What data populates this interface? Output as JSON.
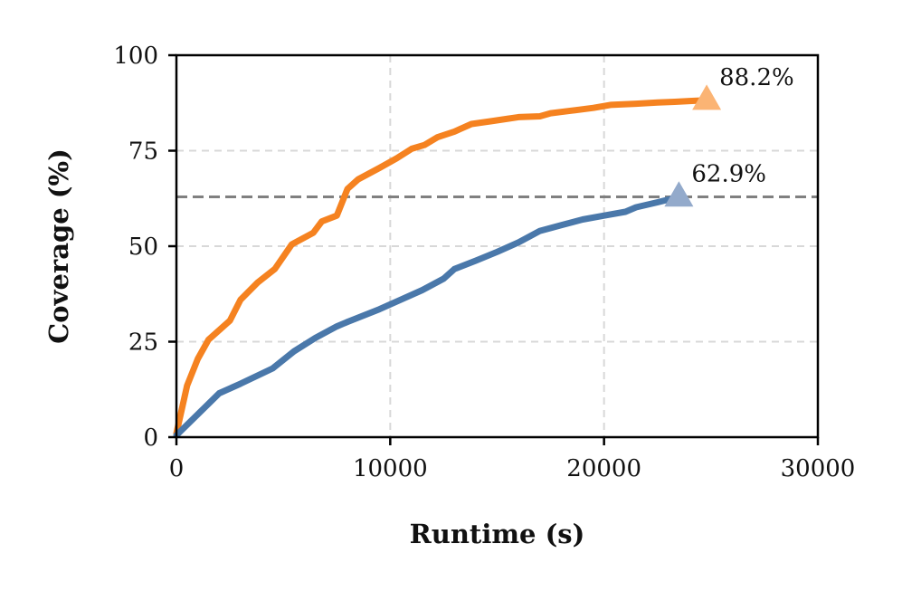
{
  "chart_data": {
    "type": "line",
    "xlabel": "Runtime (s)",
    "ylabel": "Coverage (%)",
    "xlim": [
      0,
      30000
    ],
    "ylim": [
      0,
      100
    ],
    "xticks": [
      0,
      10000,
      20000,
      30000
    ],
    "yticks": [
      0,
      25,
      50,
      75,
      100
    ],
    "grid": true,
    "reference_line_y": 62.9,
    "series": [
      {
        "color": "#f58220",
        "marker_color": "#fbb474",
        "end_label": "88.2%",
        "x": [
          0,
          200,
          500,
          1000,
          1500,
          2500,
          3000,
          3800,
          4600,
          5400,
          6400,
          6800,
          7500,
          8000,
          8500,
          9500,
          10300,
          11000,
          11600,
          12200,
          13000,
          13800,
          14800,
          16000,
          17000,
          17500,
          18500,
          19500,
          20300,
          21500,
          22500,
          23300,
          24000,
          24800
        ],
        "y": [
          1,
          6,
          13.5,
          20.5,
          25.5,
          30.5,
          36,
          40.5,
          44,
          50.5,
          53.5,
          56.5,
          58,
          65,
          67.5,
          70.5,
          73,
          75.5,
          76.5,
          78.5,
          80,
          82,
          82.8,
          83.8,
          84,
          84.8,
          85.5,
          86.2,
          87,
          87.3,
          87.6,
          87.8,
          88,
          88.2
        ]
      },
      {
        "color": "#4a78aa",
        "marker_color": "#93aacb",
        "end_label": "62.9%",
        "x": [
          0,
          1000,
          2000,
          3000,
          4500,
          5500,
          6500,
          7500,
          8000,
          9500,
          10500,
          11500,
          12500,
          13000,
          14000,
          15000,
          16000,
          17000,
          18000,
          19000,
          20000,
          21000,
          21500,
          22500,
          23500
        ],
        "y": [
          0.5,
          6,
          11.5,
          14,
          18,
          22.5,
          26,
          29,
          30.2,
          33.5,
          36,
          38.5,
          41.5,
          44,
          46.2,
          48.5,
          51,
          54,
          55.5,
          57,
          58,
          59,
          60.2,
          61.5,
          62.9
        ]
      }
    ]
  }
}
